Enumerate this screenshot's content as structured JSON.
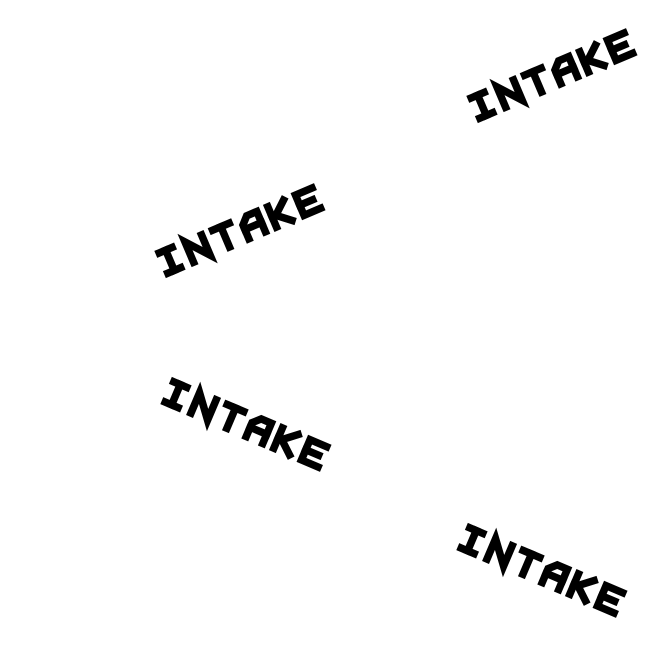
{
  "labels": [
    {
      "text": "INTAKE"
    },
    {
      "text": "INTAKE"
    },
    {
      "text": "INTAKE"
    },
    {
      "text": "INTAKE"
    }
  ],
  "colors": {
    "ink": "#000000",
    "background": "#ffffff"
  }
}
